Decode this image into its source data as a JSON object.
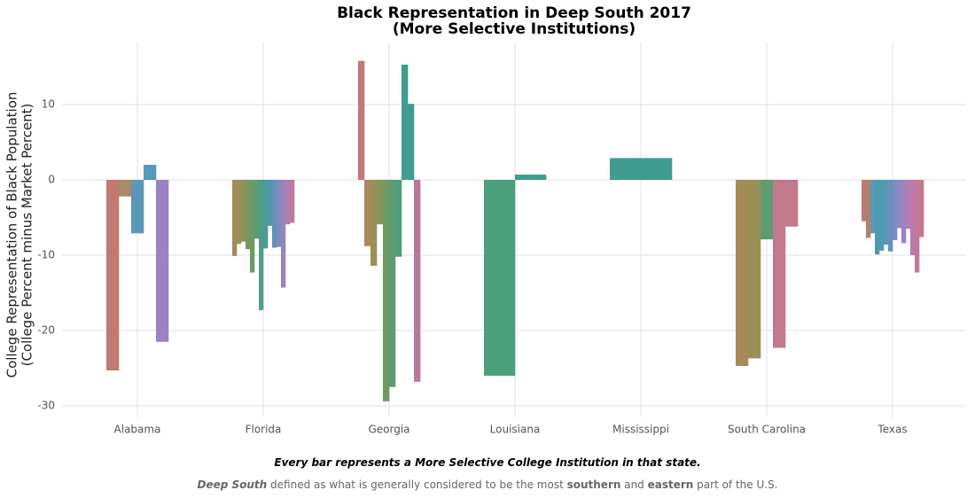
{
  "chart_data": {
    "type": "bar",
    "title": [
      "Black Representation in Deep South 2017",
      "(More Selective Institutions)"
    ],
    "y_label": [
      "College Representation of Black Population",
      "(College Percent minus Market Percent)"
    ],
    "categories": [
      "Alabama",
      "Florida",
      "Georgia",
      "Louisiana",
      "Mississippi",
      "South Carolina",
      "Texas"
    ],
    "values": [
      [
        -25.3,
        -2.2,
        -7.1,
        2.0,
        -21.5
      ],
      [
        -10.1,
        -8.5,
        -8.2,
        -9.2,
        -12.3,
        -7.8,
        -17.3,
        -9.1,
        -6.1,
        -9.0,
        -8.9,
        -14.3,
        -5.9,
        -5.7
      ],
      [
        15.8,
        -8.8,
        -11.4,
        -5.9,
        -29.4,
        -27.5,
        -10.2,
        15.3,
        10.1,
        -26.8
      ],
      [
        -26.0,
        0.7
      ],
      [
        2.9
      ],
      [
        -24.7,
        -23.7,
        -7.9,
        -22.3,
        -6.2
      ],
      [
        -5.5,
        -7.7,
        -7.1,
        -9.9,
        -9.4,
        -8.6,
        -9.5,
        -8.0,
        -6.4,
        -8.4,
        -6.5,
        -10.0,
        -12.3,
        -7.6
      ]
    ],
    "colors": [
      [
        "#c27a70",
        "#a88a68",
        "#5a97b9",
        "#5a97b9",
        "#9b82c2"
      ],
      [
        "#a58b5a",
        "#9b8e58",
        "#8c9258",
        "#7b965d",
        "#6b9a66",
        "#5d9c72",
        "#4f9d85",
        "#4b9b97",
        "#5097a8",
        "#6192b7",
        "#7c8bbe",
        "#9983bd",
        "#b27cb2",
        "#c2779f"
      ],
      [
        "#c07a72",
        "#a98a5c",
        "#9a8f58",
        "#869458",
        "#6d9a64",
        "#5c9c6f",
        "#4f9c80",
        "#3f9c8f",
        "#3f9c8f",
        "#b8779d"
      ],
      [
        "#4ba07c",
        "#3f9c8f"
      ],
      [
        "#3f9c8f"
      ],
      [
        "#a58b58",
        "#9b8f58",
        "#5d9c6f",
        "#c07a8a",
        "#c07a8a"
      ],
      [
        "#c07a6f",
        "#b0826a",
        "#5c97b6",
        "#4f99ad",
        "#4d9bb2",
        "#5997b9",
        "#6692bd",
        "#7a8cc0",
        "#8d86c1",
        "#a080bd",
        "#b07cb5",
        "#bc79a9",
        "#c2779c",
        "#c4778f"
      ]
    ],
    "ylim": [
      -31.5,
      16.5
    ],
    "yticks": [
      -30,
      -20,
      -10,
      0,
      10
    ],
    "grid": true,
    "caption": [
      "Every bar represents a More Selective College Institution in that state."
    ],
    "note": [
      "Deep South",
      " defined as what is generally considered to be the most ",
      "southern",
      " and ",
      "eastern",
      " part of the U.S."
    ]
  }
}
